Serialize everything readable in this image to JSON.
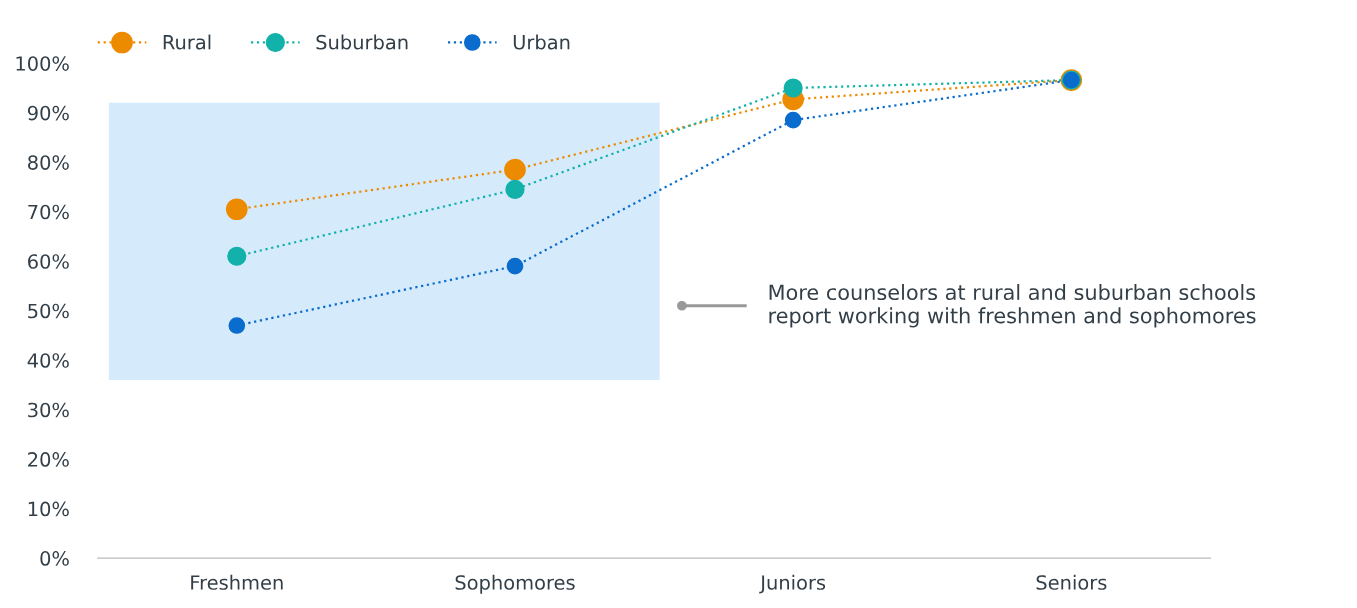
{
  "chart_data": {
    "type": "line",
    "categories": [
      "Freshmen",
      "Sophomores",
      "Juniors",
      "Seniors"
    ],
    "series": [
      {
        "name": "Rural",
        "color": "#ed8b00",
        "values": [
          70.5,
          78.5,
          92.7,
          96.6
        ]
      },
      {
        "name": "Suburban",
        "color": "#12b1aa",
        "values": [
          61,
          74.5,
          95,
          96.6
        ]
      },
      {
        "name": "Urban",
        "color": "#0a6ccc",
        "values": [
          47,
          59,
          88.5,
          96.6
        ]
      }
    ],
    "ylim": [
      0,
      100
    ],
    "yticks": [
      {
        "value": 0,
        "label": "0%"
      },
      {
        "value": 10,
        "label": "10%"
      },
      {
        "value": 20,
        "label": "20%"
      },
      {
        "value": 30,
        "label": "30%"
      },
      {
        "value": 40,
        "label": "40%"
      },
      {
        "value": 50,
        "label": "50%"
      },
      {
        "value": 60,
        "label": "60%"
      },
      {
        "value": 70,
        "label": "70%"
      },
      {
        "value": 80,
        "label": "80%"
      },
      {
        "value": 90,
        "label": "90%"
      },
      {
        "value": 100,
        "label": "100%"
      }
    ],
    "bands": [
      {
        "axis": "y",
        "from": 36,
        "to": 92,
        "color": "#d5eafb"
      }
    ],
    "annotations": [
      "More counselors at rural and suburban schools\nreport working with freshmen and sophomores"
    ],
    "legend": "top left",
    "marker": "circle",
    "line_style": "dotted",
    "grid": false
  }
}
